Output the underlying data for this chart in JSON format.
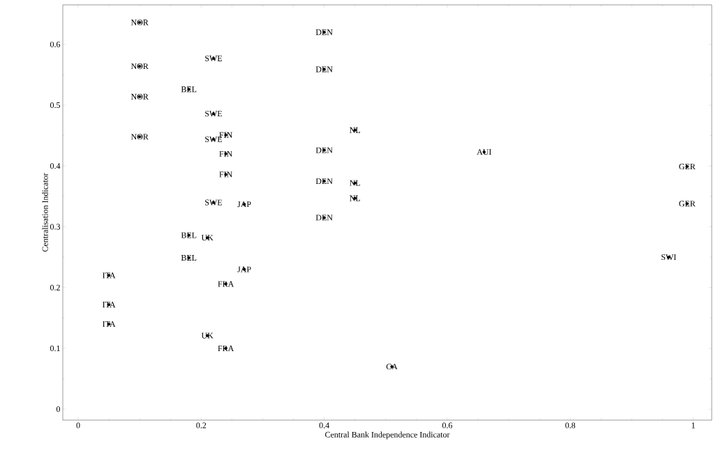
{
  "chart_data": {
    "type": "scatter",
    "xlabel": "Central Bank Independence Indicator",
    "ylabel": "Centralisation Indicator",
    "xlim": [
      -0.025,
      1.03
    ],
    "ylim": [
      -0.018,
      0.665
    ],
    "xticks": [
      0,
      0.2,
      0.4,
      0.6,
      0.8,
      1
    ],
    "yticks": [
      0,
      0.1,
      0.2,
      0.3,
      0.4,
      0.5,
      0.6
    ],
    "grid": false,
    "series": [
      {
        "color": "#000000",
        "x": [
          0.1,
          0.1,
          0.1,
          0.1,
          0.22,
          0.22,
          0.22,
          0.22,
          0.18,
          0.18,
          0.18,
          0.4,
          0.4,
          0.4,
          0.4,
          0.4,
          0.45,
          0.45,
          0.45,
          0.24,
          0.24,
          0.24,
          0.27,
          0.27,
          0.21,
          0.21,
          0.24,
          0.24,
          0.05,
          0.05,
          0.05,
          0.51,
          0.66,
          0.99,
          0.99,
          0.96
        ],
        "values": [
          0.636,
          0.564,
          0.514,
          0.448,
          0.577,
          0.486,
          0.444,
          0.34,
          0.526,
          0.286,
          0.249,
          0.62,
          0.559,
          0.426,
          0.375,
          0.315,
          0.459,
          0.372,
          0.347,
          0.451,
          0.42,
          0.386,
          0.337,
          0.23,
          0.282,
          0.121,
          0.206,
          0.1,
          0.22,
          0.172,
          0.14,
          0.07,
          0.423,
          0.399,
          0.338,
          0.25
        ],
        "value_labels": [
          "NOR",
          "NOR",
          "NOR",
          "NOR",
          "SWE",
          "SWE",
          "SWE",
          "SWE",
          "BEL",
          "BEL",
          "BEL",
          "DEN",
          "DEN",
          "DEN",
          "DEN",
          "DEN",
          "NL",
          "NL",
          "NL",
          "FIN",
          "FIN",
          "FIN",
          "JAP",
          "JAP",
          "UK",
          "UK",
          "FRA",
          "FRA",
          "ITA",
          "ITA",
          "ITA",
          "CA",
          "AUI",
          "GER",
          "GER",
          "SWI"
        ]
      }
    ]
  }
}
